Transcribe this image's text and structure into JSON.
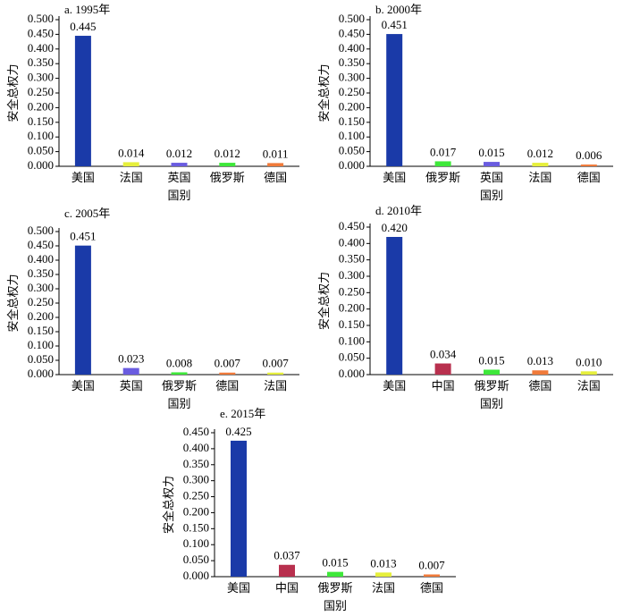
{
  "chart_data": [
    {
      "type": "bar",
      "title": "a. 1995年",
      "x_label": "国别",
      "y_label": "安全总权力",
      "categories": [
        "美国",
        "法国",
        "英国",
        "俄罗斯",
        "德国"
      ],
      "values": [
        0.445,
        0.014,
        0.012,
        0.012,
        0.011
      ],
      "value_labels": [
        "0.445",
        "0.014",
        "0.012",
        "0.012",
        "0.011"
      ],
      "colors": [
        "#1a3aa8",
        "#e6ef3c",
        "#6a5ce0",
        "#3ee83a",
        "#f07a3a"
      ],
      "ylim": [
        0,
        0.5
      ],
      "yticks": [
        {
          "value": 0,
          "label": "0.000"
        },
        {
          "value": 0.05,
          "label": "0.050"
        },
        {
          "value": 0.1,
          "label": "0.100"
        },
        {
          "value": 0.15,
          "label": "0.150"
        },
        {
          "value": 0.2,
          "label": "0.200"
        },
        {
          "value": 0.25,
          "label": "0.250"
        },
        {
          "value": 0.3,
          "label": "0.300"
        },
        {
          "value": 0.35,
          "label": "0.350"
        },
        {
          "value": 0.4,
          "label": "0.400"
        },
        {
          "value": 0.45,
          "label": "0.450"
        },
        {
          "value": 0.5,
          "label": "0.500"
        }
      ]
    },
    {
      "type": "bar",
      "title": "b. 2000年",
      "x_label": "国别",
      "y_label": "安全总权力",
      "categories": [
        "美国",
        "俄罗斯",
        "英国",
        "法国",
        "德国"
      ],
      "values": [
        0.451,
        0.017,
        0.015,
        0.012,
        0.006
      ],
      "value_labels": [
        "0.451",
        "0.017",
        "0.015",
        "0.012",
        "0.006"
      ],
      "colors": [
        "#1a3aa8",
        "#3ee83a",
        "#6a5ce0",
        "#e6ef3c",
        "#f07a3a"
      ],
      "ylim": [
        0,
        0.5
      ],
      "yticks": [
        {
          "value": 0,
          "label": "0.000"
        },
        {
          "value": 0.05,
          "label": "0.050"
        },
        {
          "value": 0.1,
          "label": "0.100"
        },
        {
          "value": 0.15,
          "label": "0.150"
        },
        {
          "value": 0.2,
          "label": "0.200"
        },
        {
          "value": 0.25,
          "label": "0.250"
        },
        {
          "value": 0.3,
          "label": "0.300"
        },
        {
          "value": 0.35,
          "label": "0.350"
        },
        {
          "value": 0.4,
          "label": "0.400"
        },
        {
          "value": 0.45,
          "label": "0.450"
        },
        {
          "value": 0.5,
          "label": "0.500"
        }
      ]
    },
    {
      "type": "bar",
      "title": "c. 2005年",
      "x_label": "国别",
      "y_label": "安全总权力",
      "categories": [
        "美国",
        "英国",
        "俄罗斯",
        "德国",
        "法国"
      ],
      "values": [
        0.451,
        0.023,
        0.008,
        0.007,
        0.007
      ],
      "value_labels": [
        "0.451",
        "0.023",
        "0.008",
        "0.007",
        "0.007"
      ],
      "colors": [
        "#1a3aa8",
        "#6a5ce0",
        "#3ee83a",
        "#f07a3a",
        "#e6ef3c"
      ],
      "ylim": [
        0,
        0.5
      ],
      "yticks": [
        {
          "value": 0,
          "label": "0.000"
        },
        {
          "value": 0.05,
          "label": "0.050"
        },
        {
          "value": 0.1,
          "label": "0.100"
        },
        {
          "value": 0.15,
          "label": "0.150"
        },
        {
          "value": 0.2,
          "label": "0.200"
        },
        {
          "value": 0.25,
          "label": "0.250"
        },
        {
          "value": 0.3,
          "label": "0.300"
        },
        {
          "value": 0.35,
          "label": "0.350"
        },
        {
          "value": 0.4,
          "label": "0.400"
        },
        {
          "value": 0.45,
          "label": "0.450"
        },
        {
          "value": 0.5,
          "label": "0.500"
        }
      ]
    },
    {
      "type": "bar",
      "title": "d. 2010年",
      "x_label": "国别",
      "y_label": "安全总权力",
      "categories": [
        "美国",
        "中国",
        "俄罗斯",
        "德国",
        "法国"
      ],
      "values": [
        0.42,
        0.034,
        0.015,
        0.013,
        0.01
      ],
      "value_labels": [
        "0.420",
        "0.034",
        "0.015",
        "0.013",
        "0.010"
      ],
      "colors": [
        "#1a3aa8",
        "#b8304e",
        "#3ee83a",
        "#f07a3a",
        "#e6ef3c"
      ],
      "ylim": [
        0,
        0.45
      ],
      "yticks": [
        {
          "value": 0,
          "label": "0.000"
        },
        {
          "value": 0.05,
          "label": "0.050"
        },
        {
          "value": 0.1,
          "label": "0.100"
        },
        {
          "value": 0.15,
          "label": "0.150"
        },
        {
          "value": 0.2,
          "label": "0.200"
        },
        {
          "value": 0.25,
          "label": "0.250"
        },
        {
          "value": 0.3,
          "label": "0.300"
        },
        {
          "value": 0.35,
          "label": "0.350"
        },
        {
          "value": 0.4,
          "label": "0.400"
        },
        {
          "value": 0.45,
          "label": "0.450"
        }
      ]
    },
    {
      "type": "bar",
      "title": "e. 2015年",
      "x_label": "国别",
      "y_label": "安全总权力",
      "categories": [
        "美国",
        "中国",
        "俄罗斯",
        "法国",
        "德国"
      ],
      "values": [
        0.425,
        0.037,
        0.015,
        0.013,
        0.007
      ],
      "value_labels": [
        "0.425",
        "0.037",
        "0.015",
        "0.013",
        "0.007"
      ],
      "colors": [
        "#1a3aa8",
        "#b8304e",
        "#3ee83a",
        "#e6ef3c",
        "#f07a3a"
      ],
      "ylim": [
        0,
        0.45
      ],
      "yticks": [
        {
          "value": 0,
          "label": "0.000"
        },
        {
          "value": 0.05,
          "label": "0.050"
        },
        {
          "value": 0.1,
          "label": "0.100"
        },
        {
          "value": 0.15,
          "label": "0.150"
        },
        {
          "value": 0.2,
          "label": "0.200"
        },
        {
          "value": 0.25,
          "label": "0.250"
        },
        {
          "value": 0.3,
          "label": "0.300"
        },
        {
          "value": 0.35,
          "label": "0.350"
        },
        {
          "value": 0.4,
          "label": "0.400"
        },
        {
          "value": 0.45,
          "label": "0.450"
        }
      ]
    }
  ]
}
